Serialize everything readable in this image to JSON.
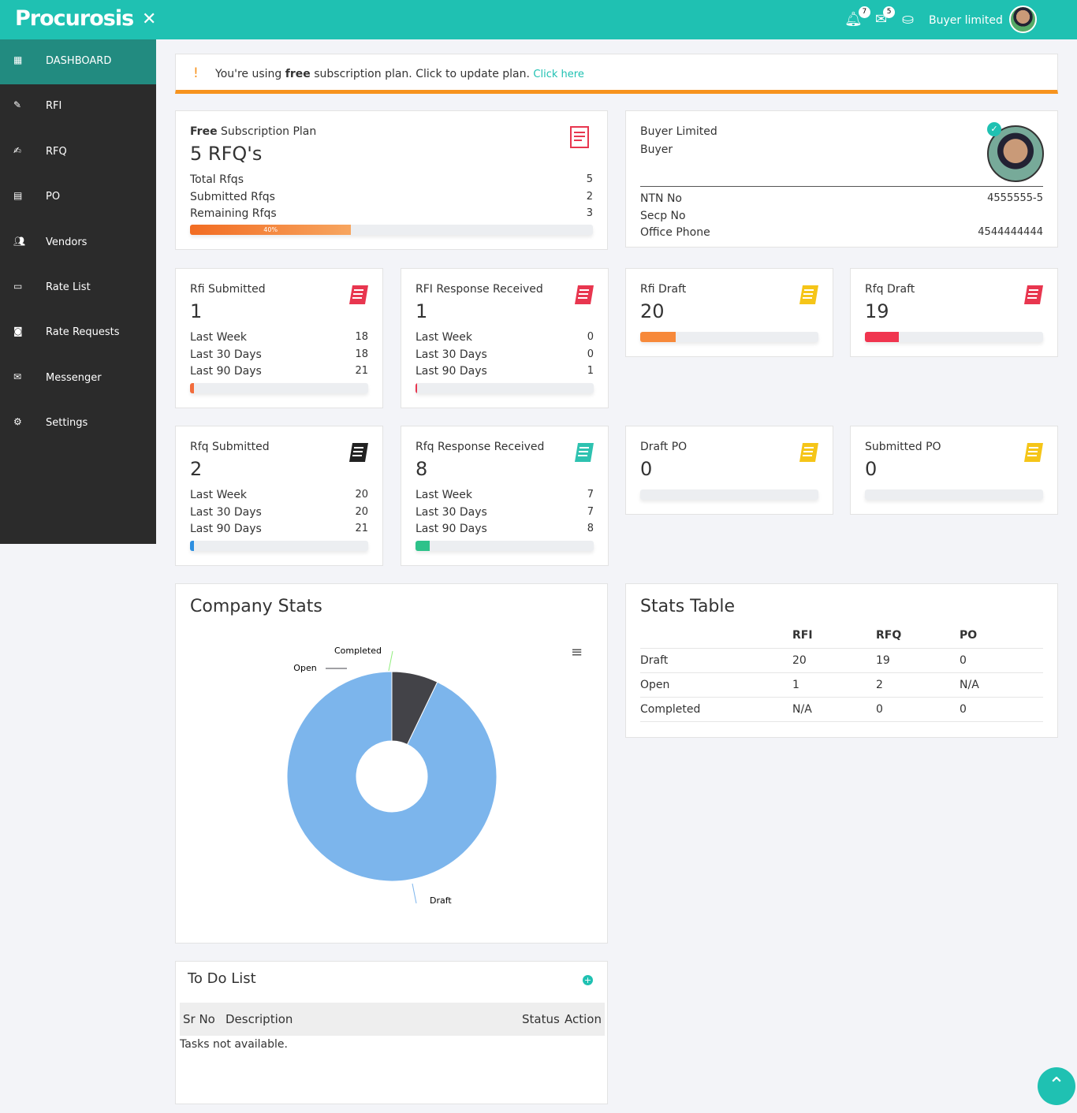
{
  "header": {
    "logo": "Procurosis",
    "notifications": "7",
    "messages": "5",
    "user": "Buyer limited"
  },
  "sidebar": {
    "items": [
      {
        "label": "DASHBOARD",
        "icon": "grid-icon"
      },
      {
        "label": "RFI",
        "icon": "edit-icon"
      },
      {
        "label": "RFQ",
        "icon": "pencil-square-icon"
      },
      {
        "label": "PO",
        "icon": "document-icon"
      },
      {
        "label": "Vendors",
        "icon": "users-icon"
      },
      {
        "label": "Rate List",
        "icon": "list-icon"
      },
      {
        "label": "Rate Requests",
        "icon": "money-icon"
      },
      {
        "label": "Messenger",
        "icon": "envelope-icon"
      },
      {
        "label": "Settings",
        "icon": "gear-icon"
      }
    ]
  },
  "alert": {
    "mark": "!",
    "pre": "You're using",
    "bold": "free",
    "post": "subscription plan. Click to update plan.",
    "link": "Click here"
  },
  "plan": {
    "title_bold": "Free",
    "title": "Subscription Plan",
    "count": "5 RFQ's",
    "rows": [
      [
        "Total Rfqs",
        "5"
      ],
      [
        "Submitted Rfqs",
        "2"
      ],
      [
        "Remaining Rfqs",
        "3"
      ]
    ],
    "progress": 40,
    "progress_label": "40%"
  },
  "profile": {
    "name": "Buyer Limited",
    "role": "Buyer",
    "rows": [
      [
        "NTN No",
        "4555555-5"
      ],
      [
        "Secp No",
        ""
      ],
      [
        "Office Phone",
        "4544444444"
      ]
    ]
  },
  "stat_cards": [
    {
      "title": "Rfi Submitted",
      "value": "1",
      "rows": [
        [
          "Last Week",
          "18"
        ],
        [
          "Last 30 Days",
          "18"
        ],
        [
          "Last 90 Days",
          "21"
        ]
      ],
      "progress": 2,
      "color": "#f26c3c",
      "icon": "#e8364f"
    },
    {
      "title": "RFI Response Received",
      "value": "1",
      "rows": [
        [
          "Last Week",
          "0"
        ],
        [
          "Last 30 Days",
          "0"
        ],
        [
          "Last 90 Days",
          "1"
        ]
      ],
      "progress": 1,
      "color": "#e8364f",
      "icon": "#e8364f"
    },
    {
      "title": "Rfi Draft",
      "value": "20",
      "rows": [],
      "progress": 20,
      "color": "#f7893a",
      "icon": "#f5c518"
    },
    {
      "title": "Rfq Draft",
      "value": "19",
      "rows": [],
      "progress": 19,
      "color": "#f0354f",
      "icon": "#e8364f"
    },
    {
      "title": "Rfq Submitted",
      "value": "2",
      "rows": [
        [
          "Last Week",
          "20"
        ],
        [
          "Last 30 Days",
          "20"
        ],
        [
          "Last 90 Days",
          "21"
        ]
      ],
      "progress": 2,
      "color": "#2d8fe0",
      "icon": "#222"
    },
    {
      "title": "Rfq Response Received",
      "value": "8",
      "rows": [
        [
          "Last Week",
          "7"
        ],
        [
          "Last 30 Days",
          "7"
        ],
        [
          "Last 90 Days",
          "8"
        ]
      ],
      "progress": 8,
      "color": "#2ec28a",
      "icon": "#2ec2b0"
    },
    {
      "title": "Draft PO",
      "value": "0",
      "rows": [],
      "progress": 0,
      "color": "#f7893a",
      "icon": "#f5c518"
    },
    {
      "title": "Submitted PO",
      "value": "0",
      "rows": [],
      "progress": 0,
      "color": "#f7893a",
      "icon": "#f5c518"
    }
  ],
  "company_stats": {
    "title": "Company Stats"
  },
  "chart_data": {
    "type": "pie",
    "donut": true,
    "categories": [
      "Draft",
      "Open",
      "Completed"
    ],
    "values": [
      39,
      3,
      0
    ],
    "colors": [
      "#7cb5ec",
      "#434348",
      "#90ed7d"
    ]
  },
  "stats_table": {
    "title": "Stats Table",
    "headers": [
      "",
      "RFI",
      "RFQ",
      "PO"
    ],
    "rows": [
      [
        "Draft",
        "20",
        "19",
        "0"
      ],
      [
        "Open",
        "1",
        "2",
        "N/A"
      ],
      [
        "Completed",
        "N/A",
        "0",
        "0"
      ]
    ]
  },
  "todo": {
    "title": "To Do List",
    "headers": [
      "Sr No",
      "Description",
      "Status",
      "Action"
    ],
    "empty": "Tasks not available."
  }
}
